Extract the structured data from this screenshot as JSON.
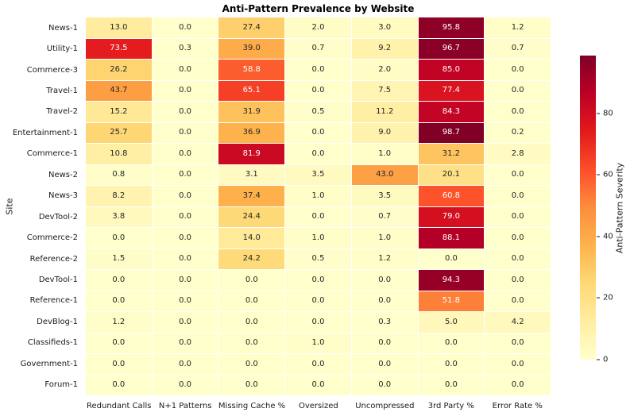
{
  "chart_data": {
    "type": "heatmap",
    "title": "Anti-Pattern Prevalence by Website",
    "ylabel": "Site",
    "colorbar_label": "Anti-Pattern Severity",
    "colorbar_ticks": [
      0,
      20,
      40,
      60,
      80
    ],
    "vmin": 0,
    "vmax": 98.7,
    "colormap": "YlOrRd",
    "colormap_stops": [
      "#ffffcc",
      "#ffeda0",
      "#fed976",
      "#feb24c",
      "#fd8d3c",
      "#fc4e2a",
      "#e31a1c",
      "#bd0026",
      "#800026"
    ],
    "grid_line_color": "#ffffff",
    "text_dark": "#262626",
    "text_light": "#ffffff",
    "legend_position": "right",
    "columns": [
      "Redundant Calls",
      "N+1 Patterns",
      "Missing Cache %",
      "Oversized",
      "Uncompressed",
      "3rd Party %",
      "Error Rate %"
    ],
    "rows": [
      "News-1",
      "Utility-1",
      "Commerce-3",
      "Travel-1",
      "Travel-2",
      "Entertainment-1",
      "Commerce-1",
      "News-2",
      "News-3",
      "DevTool-2",
      "Commerce-2",
      "Reference-2",
      "DevTool-1",
      "Reference-1",
      "DevBlog-1",
      "Classifieds-1",
      "Government-1",
      "Forum-1"
    ],
    "values": [
      [
        13.0,
        0.0,
        27.4,
        2.0,
        3.0,
        95.8,
        1.2
      ],
      [
        73.5,
        0.3,
        39.0,
        0.7,
        9.2,
        96.7,
        0.7
      ],
      [
        26.2,
        0.0,
        58.8,
        0.0,
        2.0,
        85.0,
        0.0
      ],
      [
        43.7,
        0.0,
        65.1,
        0.0,
        7.5,
        77.4,
        0.0
      ],
      [
        15.2,
        0.0,
        31.9,
        0.5,
        11.2,
        84.3,
        0.0
      ],
      [
        25.7,
        0.0,
        36.9,
        0.0,
        9.0,
        98.7,
        0.2
      ],
      [
        10.8,
        0.0,
        81.9,
        0.0,
        1.0,
        31.2,
        2.8
      ],
      [
        0.8,
        0.0,
        3.1,
        3.5,
        43.0,
        20.1,
        0.0
      ],
      [
        8.2,
        0.0,
        37.4,
        1.0,
        3.5,
        60.8,
        0.0
      ],
      [
        3.8,
        0.0,
        24.4,
        0.0,
        0.7,
        79.0,
        0.0
      ],
      [
        0.0,
        0.0,
        14.0,
        1.0,
        1.0,
        88.1,
        0.0
      ],
      [
        1.5,
        0.0,
        24.2,
        0.5,
        1.2,
        0.0,
        0.0
      ],
      [
        0.0,
        0.0,
        0.0,
        0.0,
        0.0,
        94.3,
        0.0
      ],
      [
        0.0,
        0.0,
        0.0,
        0.0,
        0.0,
        51.8,
        0.0
      ],
      [
        1.2,
        0.0,
        0.0,
        0.0,
        0.3,
        5.0,
        4.2
      ],
      [
        0.0,
        0.0,
        0.0,
        1.0,
        0.0,
        0.0,
        0.0
      ],
      [
        0.0,
        0.0,
        0.0,
        0.0,
        0.0,
        0.0,
        0.0
      ],
      [
        0.0,
        0.0,
        0.0,
        0.0,
        0.0,
        0.0,
        0.0
      ]
    ]
  }
}
